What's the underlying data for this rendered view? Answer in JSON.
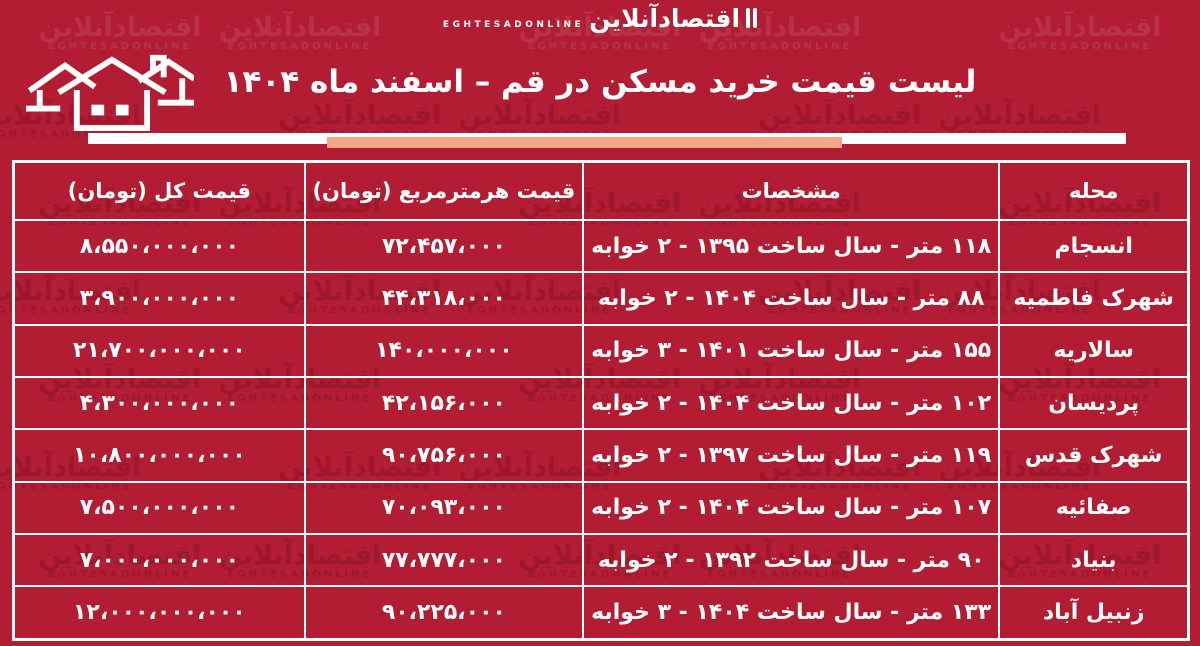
{
  "brand": {
    "logo_fa": "اقتصادآنلاین",
    "logo_en": "EGHTESADONLINE"
  },
  "watermark": {
    "fa": "اقتصادآنلاین",
    "en": "EGHTESADONLINE",
    "count": 35
  },
  "header": {
    "title": "لیست قیمت خرید مسکن در قم – اسفند ماه ۱۴۰۴"
  },
  "colors": {
    "background": "#b21d34",
    "accent_salmon": "#f4a58a",
    "border": "#ffffff",
    "text": "#ffffff"
  },
  "table": {
    "headers": {
      "neighborhood": "محله",
      "specs": "مشخصات",
      "price_per_m2": "قیمت هرمترمربع (تومان)",
      "total": "قیمت کل (تومان)"
    },
    "rows": [
      {
        "neighborhood": "انسجام",
        "specs": "۱۱۸ متر - سال ساخت ۱۳۹۵ - ۲ خوابه",
        "price_per_m2": "۷۲،۴۵۷،۰۰۰",
        "total": "۸،۵۵۰،۰۰۰،۰۰۰"
      },
      {
        "neighborhood": "شهرک فاطمیه",
        "specs": "۸۸ متر - سال ساخت ۱۴۰۴ - ۲ خوابه",
        "price_per_m2": "۴۴،۳۱۸،۰۰۰",
        "total": "۳،۹۰۰،۰۰۰،۰۰۰"
      },
      {
        "neighborhood": "سالاریه",
        "specs": "۱۵۵ متر - سال ساخت ۱۴۰۱ - ۳ خوابه",
        "price_per_m2": "۱۴۰،۰۰۰،۰۰۰",
        "total": "۲۱،۷۰۰،۰۰۰،۰۰۰"
      },
      {
        "neighborhood": "پردیسان",
        "specs": "۱۰۲ متر - سال ساخت ۱۴۰۴ - ۲ خوابه",
        "price_per_m2": "۴۲،۱۵۶،۰۰۰",
        "total": "۴،۳۰۰،۰۰۰،۰۰۰"
      },
      {
        "neighborhood": "شهرک قدس",
        "specs": "۱۱۹ متر - سال ساخت ۱۳۹۷ - ۲ خوابه",
        "price_per_m2": "۹۰،۷۵۶،۰۰۰",
        "total": "۱۰،۸۰۰،۰۰۰،۰۰۰"
      },
      {
        "neighborhood": "صفائیه",
        "specs": "۱۰۷ متر - سال ساخت ۱۴۰۴ - ۲ خوابه",
        "price_per_m2": "۷۰،۰۹۳،۰۰۰",
        "total": "۷،۵۰۰،۰۰۰،۰۰۰"
      },
      {
        "neighborhood": "بنیاد",
        "specs": "۹۰ متر - سال ساخت ۱۳۹۲ - ۲ خوابه",
        "price_per_m2": "۷۷،۷۷۷،۰۰۰",
        "total": "۷،۰۰۰،۰۰۰،۰۰۰"
      },
      {
        "neighborhood": "زنبیل آباد",
        "specs": "۱۳۳ متر - سال ساخت ۱۴۰۴ - ۳ خوابه",
        "price_per_m2": "۹۰،۲۲۵،۰۰۰",
        "total": "۱۲،۰۰۰،۰۰۰،۰۰۰"
      }
    ]
  },
  "chart_data": {
    "type": "table",
    "title": "لیست قیمت خرید مسکن در قم – اسفند ماه ۱۴۰۴",
    "columns": [
      "محله",
      "مشخصات",
      "قیمت هرمترمربع (تومان)",
      "قیمت کل (تومان)"
    ],
    "rows_numeric": [
      {
        "neighborhood": "انسجام",
        "area_m2": 118,
        "year_built": 1395,
        "bedrooms": 2,
        "price_per_m2_toman": 72457000,
        "total_toman": 8550000000
      },
      {
        "neighborhood": "شهرک فاطمیه",
        "area_m2": 88,
        "year_built": 1404,
        "bedrooms": 2,
        "price_per_m2_toman": 44318000,
        "total_toman": 3900000000
      },
      {
        "neighborhood": "سالاریه",
        "area_m2": 155,
        "year_built": 1401,
        "bedrooms": 3,
        "price_per_m2_toman": 140000000,
        "total_toman": 21700000000
      },
      {
        "neighborhood": "پردیسان",
        "area_m2": 102,
        "year_built": 1404,
        "bedrooms": 2,
        "price_per_m2_toman": 42156000,
        "total_toman": 4300000000
      },
      {
        "neighborhood": "شهرک قدس",
        "area_m2": 119,
        "year_built": 1397,
        "bedrooms": 2,
        "price_per_m2_toman": 90756000,
        "total_toman": 10800000000
      },
      {
        "neighborhood": "صفائیه",
        "area_m2": 107,
        "year_built": 1404,
        "bedrooms": 2,
        "price_per_m2_toman": 70093000,
        "total_toman": 7500000000
      },
      {
        "neighborhood": "بنیاد",
        "area_m2": 90,
        "year_built": 1392,
        "bedrooms": 2,
        "price_per_m2_toman": 77777000,
        "total_toman": 7000000000
      },
      {
        "neighborhood": "زنبیل آباد",
        "area_m2": 133,
        "year_built": 1404,
        "bedrooms": 3,
        "price_per_m2_toman": 90225000,
        "total_toman": 12000000000
      }
    ]
  }
}
